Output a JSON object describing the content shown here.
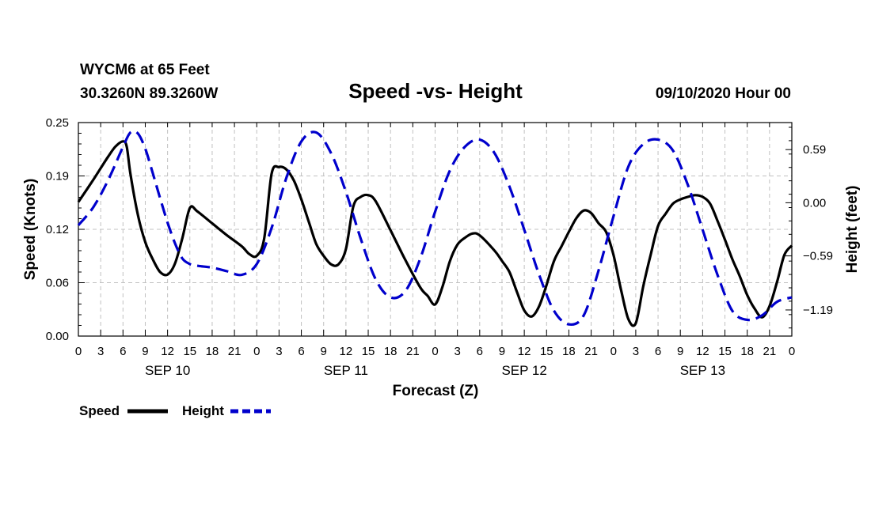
{
  "chart_data": {
    "type": "line",
    "station_line": "WYCM6 at 65 Feet",
    "location_line": "30.3260N 89.3260W",
    "title": "Speed -vs- Height",
    "date_line": "09/10/2020 Hour 00",
    "xlabel": "Forecast (Z)",
    "ylabel_left": "Speed (Knots)",
    "ylabel_right": "Height (feet)",
    "x_range_hours": [
      0,
      96
    ],
    "ylim_left": [
      0,
      0.25
    ],
    "ylim_right": [
      -1.48,
      0.89
    ],
    "left_ticks": [
      "0.00",
      "0.06",
      "0.12",
      "0.19",
      "0.25"
    ],
    "left_tick_values": [
      0,
      0.0625,
      0.125,
      0.1875,
      0.25
    ],
    "right_ticks": [
      "0.59",
      "0.00",
      "−0.59",
      "−1.19"
    ],
    "right_tick_values": [
      0.59,
      0,
      -0.59,
      -1.19
    ],
    "hour_tick_labels": [
      "0",
      "3",
      "6",
      "9",
      "12",
      "15",
      "18",
      "21"
    ],
    "day_labels": [
      "SEP 10",
      "SEP 11",
      "SEP 12",
      "SEP 13"
    ],
    "legend": {
      "speed_label": "Speed",
      "height_label": "Height"
    },
    "colors": {
      "speed": "#000000",
      "height": "#0000cc",
      "grid": "#c0c0c0"
    },
    "series": [
      {
        "name": "Speed",
        "axis": "left",
        "style": "solid",
        "x": [
          0,
          2,
          4,
          5,
          6,
          6.5,
          7,
          8,
          9,
          10,
          11,
          12,
          13,
          14,
          15,
          16,
          18,
          20,
          22,
          23,
          24,
          25,
          26,
          27,
          28,
          29,
          30,
          31,
          32,
          33,
          34,
          35,
          36,
          37,
          38,
          39,
          40,
          42,
          44,
          46,
          47,
          48,
          49,
          50,
          51,
          52,
          53,
          54,
          56,
          57,
          58,
          59,
          60,
          61,
          62,
          63,
          64,
          65,
          66,
          67,
          68,
          69,
          70,
          71,
          72,
          73,
          74,
          75,
          76,
          77,
          78,
          79,
          80,
          81,
          82,
          83,
          84,
          85,
          86,
          87,
          88,
          89,
          90,
          91,
          92,
          93,
          94,
          95,
          96
        ],
        "values": [
          0.157,
          0.183,
          0.21,
          0.222,
          0.228,
          0.222,
          0.19,
          0.142,
          0.11,
          0.09,
          0.075,
          0.072,
          0.085,
          0.115,
          0.15,
          0.146,
          0.132,
          0.118,
          0.105,
          0.096,
          0.094,
          0.114,
          0.19,
          0.198,
          0.195,
          0.182,
          0.16,
          0.134,
          0.108,
          0.094,
          0.084,
          0.084,
          0.102,
          0.152,
          0.163,
          0.165,
          0.158,
          0.124,
          0.089,
          0.057,
          0.047,
          0.037,
          0.058,
          0.088,
          0.107,
          0.115,
          0.12,
          0.118,
          0.1,
          0.088,
          0.075,
          0.052,
          0.03,
          0.023,
          0.035,
          0.06,
          0.088,
          0.105,
          0.122,
          0.138,
          0.147,
          0.144,
          0.132,
          0.122,
          0.095,
          0.055,
          0.02,
          0.015,
          0.058,
          0.095,
          0.129,
          0.143,
          0.155,
          0.16,
          0.163,
          0.165,
          0.163,
          0.155,
          0.135,
          0.113,
          0.09,
          0.07,
          0.048,
          0.032,
          0.022,
          0.035,
          0.063,
          0.095,
          0.106
        ]
      },
      {
        "name": "Height",
        "axis": "right",
        "style": "dashed",
        "x": [
          0,
          2,
          4,
          6,
          7,
          8,
          9,
          10,
          11,
          12,
          13,
          14,
          15,
          16,
          18,
          20,
          22,
          24,
          26,
          28,
          30,
          32,
          34,
          36,
          38,
          40,
          42,
          44,
          46,
          48,
          50,
          52,
          54,
          56,
          58,
          60,
          62,
          64,
          66,
          68,
          70,
          72,
          74,
          76,
          78,
          80,
          82,
          84,
          86,
          88,
          90,
          92,
          94,
          96
        ],
        "values": [
          -0.25,
          -0.05,
          0.25,
          0.62,
          0.78,
          0.77,
          0.6,
          0.33,
          0.05,
          -0.22,
          -0.45,
          -0.62,
          -0.68,
          -0.7,
          -0.72,
          -0.76,
          -0.8,
          -0.68,
          -0.28,
          0.28,
          0.68,
          0.78,
          0.55,
          0.12,
          -0.4,
          -0.85,
          -1.05,
          -0.98,
          -0.62,
          -0.1,
          0.36,
          0.62,
          0.7,
          0.55,
          0.18,
          -0.3,
          -0.8,
          -1.2,
          -1.35,
          -1.25,
          -0.75,
          -0.15,
          0.4,
          0.65,
          0.7,
          0.58,
          0.2,
          -0.3,
          -0.8,
          -1.2,
          -1.3,
          -1.25,
          -1.1,
          -1.05
        ]
      }
    ]
  }
}
